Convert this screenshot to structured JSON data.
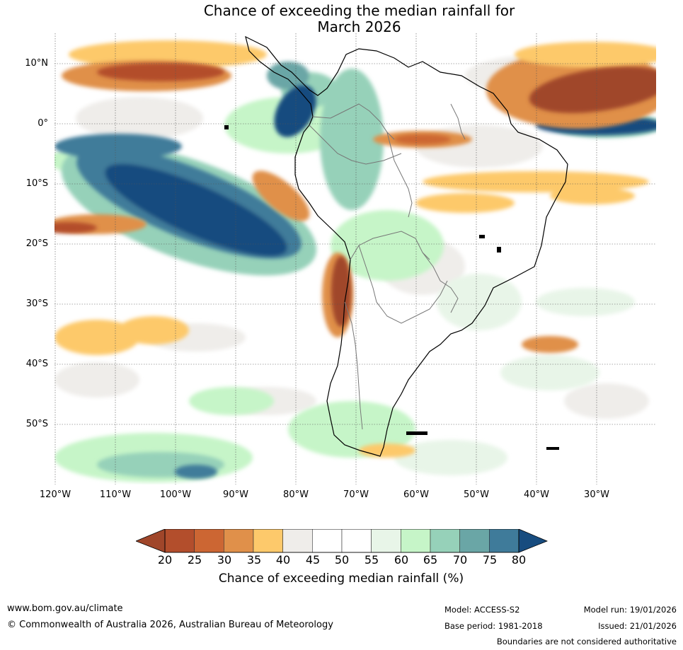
{
  "title": {
    "line1": "Chance of exceeding the median rainfall for",
    "line2": "March 2026"
  },
  "map": {
    "lat_labels": [
      "10°N",
      "0°",
      "10°S",
      "20°S",
      "30°S",
      "40°S",
      "50°S"
    ],
    "lon_labels": [
      "120°W",
      "110°W",
      "100°W",
      "90°W",
      "80°W",
      "70°W",
      "60°W",
      "50°W",
      "40°W",
      "30°W"
    ]
  },
  "legend": {
    "ticks": [
      "20",
      "25",
      "30",
      "35",
      "40",
      "45",
      "50",
      "55",
      "60",
      "65",
      "70",
      "75",
      "80"
    ],
    "colors": [
      "#a0462a",
      "#b34e2c",
      "#cc6633",
      "#e0904a",
      "#fdc96b",
      "#efedea",
      "#ffffff",
      "#ffffff",
      "#e8f5e8",
      "#c6f5c8",
      "#96d1b9",
      "#6aa6a6",
      "#3f7b9a",
      "#174c7f"
    ],
    "label": "Chance of exceeding median rainfall (%)"
  },
  "footer": {
    "website": "www.bom.gov.au/climate",
    "copyright": "© Commonwealth of Australia 2026, Australian Bureau of Meteorology",
    "model": "Model: ACCESS-S2",
    "base_period": "Base period: 1981-2018",
    "model_run": "Model run: 19/01/2026",
    "issued": "Issued: 21/01/2026",
    "disclaimer": "Boundaries are not considered authoritative"
  }
}
